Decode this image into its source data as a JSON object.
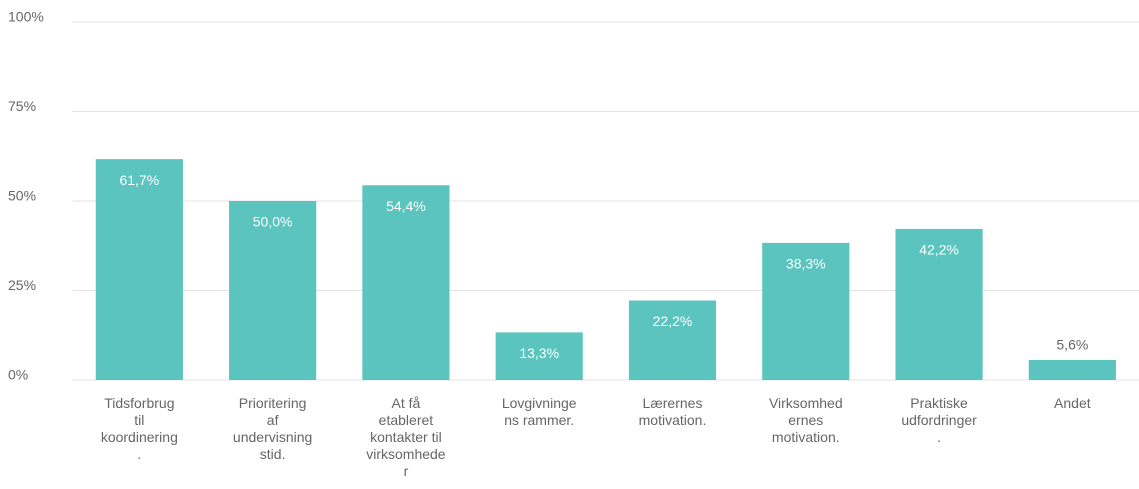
{
  "chart_data": {
    "type": "bar",
    "categories": [
      [
        "Tidsforbrug",
        "til",
        "koordinering",
        "."
      ],
      [
        "Prioritering",
        "af",
        "undervisning",
        "stid."
      ],
      [
        "At få",
        "etableret",
        "kontakter til",
        "virksomhede",
        "r"
      ],
      [
        "Lovgivninge",
        "ns rammer."
      ],
      [
        "Lærernes",
        "motivation."
      ],
      [
        "Virksomhed",
        "ernes",
        "motivation."
      ],
      [
        "Praktiske",
        "udfordringer",
        "."
      ],
      [
        "Andet"
      ]
    ],
    "values": [
      61.7,
      50.0,
      54.4,
      13.3,
      22.2,
      38.3,
      42.2,
      5.6
    ],
    "value_labels": [
      "61,7%",
      "50,0%",
      "54,4%",
      "13,3%",
      "22,2%",
      "38,3%",
      "42,2%",
      "5,6%"
    ],
    "color": "#5bc4bf",
    "ylim": [
      0,
      100
    ],
    "yticks": [
      {
        "value": 0,
        "label": "0%"
      },
      {
        "value": 25,
        "label": "25%"
      },
      {
        "value": 50,
        "label": "50%"
      },
      {
        "value": 75,
        "label": "75%"
      },
      {
        "value": 100,
        "label": "100%"
      }
    ],
    "grid": true
  }
}
